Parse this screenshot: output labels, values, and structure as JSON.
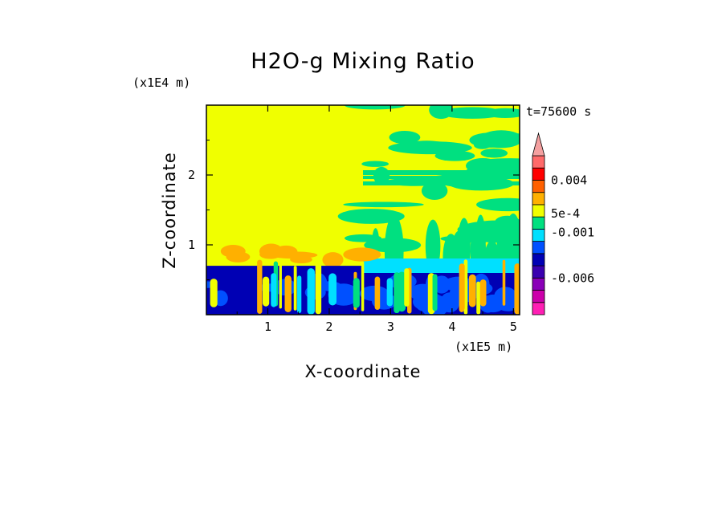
{
  "chart_data": {
    "type": "heatmap",
    "title": "H2O-g Mixing Ratio",
    "xlabel": "X-coordinate",
    "ylabel": "Z-coordinate",
    "x_unit": "(x1E5 m)",
    "y_unit": "(x1E4 m)",
    "time_label": "t=75600 s",
    "xlim": [
      0,
      5.1
    ],
    "ylim": [
      0,
      3.0
    ],
    "x_ticks": [
      1,
      2,
      3,
      4,
      5
    ],
    "y_ticks": [
      1,
      2
    ],
    "colorbar": {
      "colors": [
        "#ff1fb4",
        "#cc00aa",
        "#8a00b8",
        "#3a00b0",
        "#0000b4",
        "#0050ff",
        "#00e0ff",
        "#00e080",
        "#f0ff00",
        "#ffb000",
        "#ff6000",
        "#ff0000",
        "#ff6a6a",
        "#f4a0a0"
      ],
      "labels": [
        "0.004",
        "5e-4",
        "-0.001",
        "-0.006"
      ],
      "extend": "max"
    },
    "colors": {
      "background_field": "#f0ff00",
      "lower_layer": "#0000b4",
      "mid_layer": "#0050ff",
      "anomaly_green": "#00e080",
      "anomaly_cyan": "#00e0ff",
      "anomaly_orange": "#ffb000"
    }
  }
}
